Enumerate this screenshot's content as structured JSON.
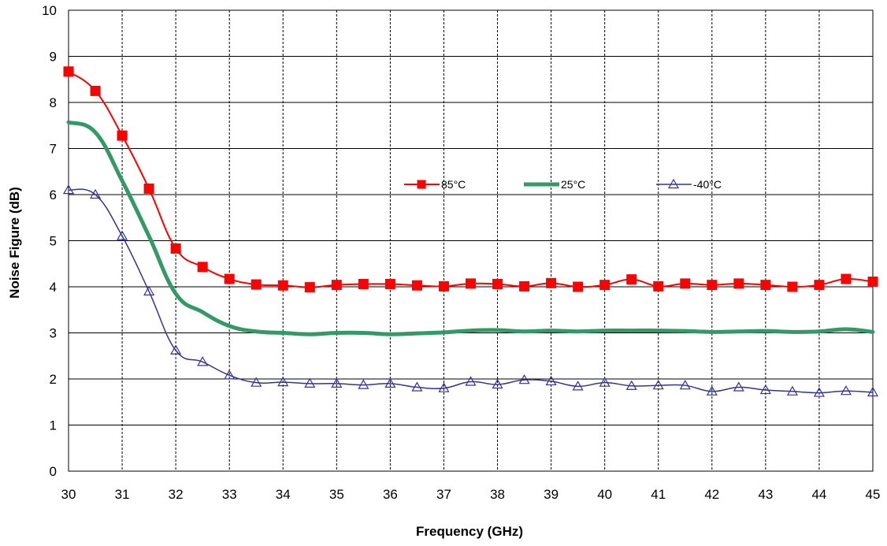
{
  "chart_data": {
    "type": "line",
    "title": "",
    "xlabel": "Frequency (GHz)",
    "ylabel": "Noise Figure  (dB)",
    "xlim": [
      30,
      45
    ],
    "ylim": [
      0,
      10
    ],
    "x_ticks": [
      "30",
      "31",
      "32",
      "33",
      "34",
      "35",
      "36",
      "37",
      "38",
      "39",
      "40",
      "41",
      "42",
      "43",
      "44",
      "45"
    ],
    "y_ticks": [
      "0",
      "1",
      "2",
      "3",
      "4",
      "5",
      "6",
      "7",
      "8",
      "9",
      "10"
    ],
    "grid": {
      "horizontal": "solid",
      "vertical": "dashed"
    },
    "legend_placement": "upper-right inside plot",
    "x": [
      30,
      30.5,
      31,
      31.5,
      32,
      32.5,
      33,
      33.5,
      34,
      34.5,
      35,
      35.5,
      36,
      36.5,
      37,
      37.5,
      38,
      38.5,
      39,
      39.5,
      40,
      40.5,
      41,
      41.5,
      42,
      42.5,
      43,
      43.5,
      44,
      44.5,
      45
    ],
    "series": [
      {
        "name": "85°C",
        "color": "#ff0000",
        "marker": "square",
        "values": [
          8.67,
          8.25,
          7.28,
          6.13,
          4.83,
          4.43,
          4.17,
          4.05,
          4.03,
          3.99,
          4.04,
          4.06,
          4.06,
          4.03,
          4.01,
          4.07,
          4.06,
          4.01,
          4.08,
          4.0,
          4.04,
          4.16,
          4.01,
          4.07,
          4.04,
          4.07,
          4.04,
          4.0,
          4.04,
          4.17,
          4.11
        ]
      },
      {
        "name": "25°C",
        "color": "#339966",
        "marker": "none",
        "values": [
          7.57,
          7.35,
          6.3,
          5.1,
          3.85,
          3.45,
          3.15,
          3.03,
          3.0,
          2.97,
          3.0,
          3.0,
          2.97,
          2.99,
          3.01,
          3.05,
          3.06,
          3.03,
          3.05,
          3.03,
          3.05,
          3.05,
          3.05,
          3.04,
          3.02,
          3.03,
          3.04,
          3.02,
          3.03,
          3.08,
          3.02
        ]
      },
      {
        "name": "-40°C",
        "color": "#333399",
        "marker": "triangle",
        "values": [
          6.1,
          6.0,
          5.1,
          3.9,
          2.62,
          2.37,
          2.08,
          1.92,
          1.93,
          1.9,
          1.9,
          1.87,
          1.9,
          1.82,
          1.8,
          1.94,
          1.88,
          1.98,
          1.95,
          1.84,
          1.92,
          1.85,
          1.86,
          1.86,
          1.73,
          1.82,
          1.76,
          1.73,
          1.7,
          1.74,
          1.71
        ]
      }
    ]
  }
}
